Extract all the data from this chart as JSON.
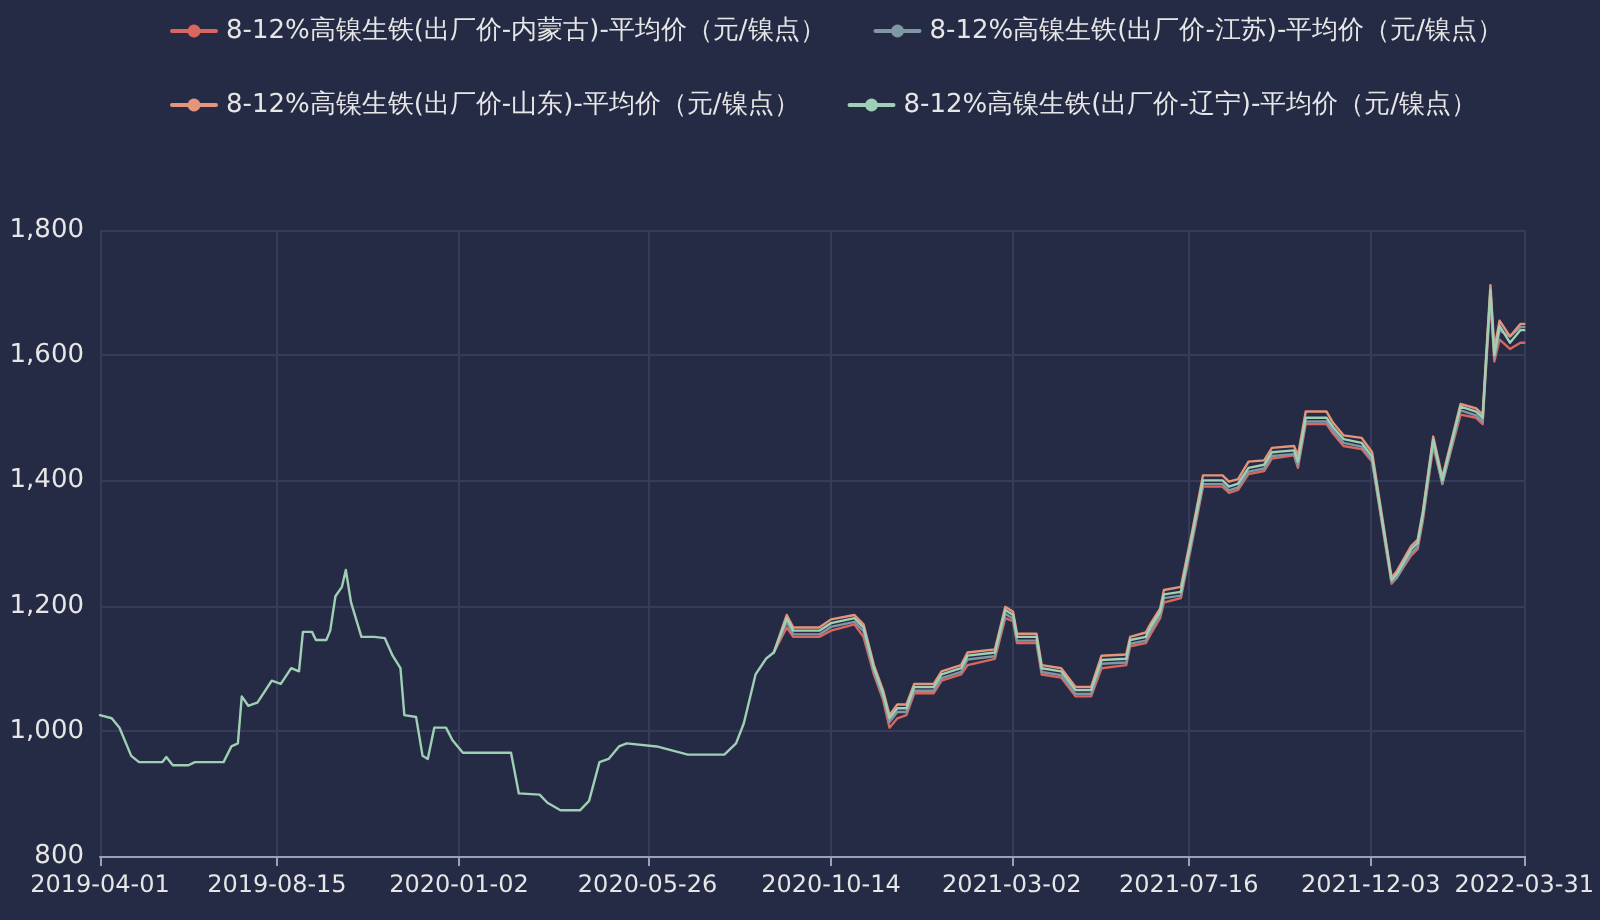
{
  "chart_data": {
    "type": "line",
    "x": [
      "2019-04-01",
      "2019-04-10",
      "2019-04-16",
      "2019-04-25",
      "2019-05-01",
      "2019-05-19",
      "2019-05-22",
      "2019-05-27",
      "2019-06-08",
      "2019-06-13",
      "2019-07-05",
      "2019-07-11",
      "2019-07-16",
      "2019-07-19",
      "2019-07-24",
      "2019-07-31",
      "2019-08-11",
      "2019-08-18",
      "2019-08-26",
      "2019-09-01",
      "2019-09-04",
      "2019-09-11",
      "2019-09-14",
      "2019-09-22",
      "2019-09-25",
      "2019-09-29",
      "2019-10-04",
      "2019-10-07",
      "2019-10-11",
      "2019-10-19",
      "2019-10-29",
      "2019-11-06",
      "2019-11-12",
      "2019-11-18",
      "2019-11-21",
      "2019-11-30",
      "2019-12-05",
      "2019-12-09",
      "2019-12-14",
      "2019-12-23",
      "2019-12-28",
      "2020-01-05",
      "2020-02-11",
      "2020-02-17",
      "2020-03-04",
      "2020-03-10",
      "2020-03-20",
      "2020-04-04",
      "2020-04-11",
      "2020-04-19",
      "2020-04-26",
      "2020-05-04",
      "2020-05-10",
      "2020-06-02",
      "2020-06-26",
      "2020-07-24",
      "2020-08-02",
      "2020-08-08",
      "2020-08-17",
      "2020-08-25",
      "2020-08-31",
      "2020-09-10",
      "2020-09-15",
      "2020-10-05",
      "2020-10-14",
      "2020-11-01",
      "2020-11-08",
      "2020-11-16",
      "2020-11-23",
      "2020-11-28",
      "2020-12-04",
      "2020-12-11",
      "2020-12-17",
      "2021-01-01",
      "2021-01-07",
      "2021-01-22",
      "2021-01-27",
      "2021-02-17",
      "2021-02-25",
      "2021-03-03",
      "2021-03-06",
      "2021-03-21",
      "2021-03-25",
      "2021-04-09",
      "2021-04-20",
      "2021-05-02",
      "2021-05-10",
      "2021-05-29",
      "2021-06-01",
      "2021-06-13",
      "2021-06-17",
      "2021-06-24",
      "2021-06-27",
      "2021-07-10",
      "2021-07-19",
      "2021-07-27",
      "2021-08-11",
      "2021-08-16",
      "2021-08-23",
      "2021-08-31",
      "2021-09-12",
      "2021-09-18",
      "2021-10-05",
      "2021-10-08",
      "2021-10-14",
      "2021-10-30",
      "2021-11-04",
      "2021-11-12",
      "2021-11-26",
      "2021-12-04",
      "2021-12-19",
      "2021-12-23",
      "2022-01-03",
      "2022-01-08",
      "2022-01-12",
      "2022-01-20",
      "2022-01-27",
      "2022-02-10",
      "2022-02-22",
      "2022-02-27",
      "2022-03-01",
      "2022-03-05",
      "2022-03-08",
      "2022-03-12",
      "2022-03-20",
      "2022-03-28",
      "2022-03-31"
    ],
    "series": [
      {
        "name": "8-12%高镍生铁(出厂价-内蒙古)-平均价（元/镍点）",
        "color": "#d9675f",
        "values": [
          null,
          null,
          null,
          null,
          null,
          null,
          null,
          null,
          null,
          null,
          null,
          null,
          null,
          null,
          null,
          null,
          null,
          null,
          null,
          null,
          null,
          null,
          null,
          null,
          null,
          null,
          null,
          null,
          null,
          null,
          null,
          null,
          null,
          null,
          null,
          null,
          null,
          null,
          null,
          null,
          null,
          null,
          null,
          null,
          null,
          null,
          null,
          null,
          null,
          null,
          null,
          null,
          null,
          null,
          null,
          null,
          null,
          null,
          null,
          null,
          1125,
          1165,
          1150,
          1150,
          1160,
          1170,
          1150,
          1090,
          1050,
          1005,
          1020,
          1025,
          1060,
          1060,
          1080,
          1090,
          1105,
          1115,
          1180,
          1175,
          1140,
          1140,
          1090,
          1085,
          1055,
          1055,
          1100,
          1105,
          1135,
          1140,
          1155,
          1180,
          1205,
          1212,
          1305,
          1390,
          1390,
          1380,
          1385,
          1410,
          1415,
          1435,
          1440,
          1420,
          1490,
          1490,
          1475,
          1455,
          1450,
          1430,
          1235,
          1245,
          1280,
          1290,
          1335,
          1455,
          1395,
          1505,
          1500,
          1490,
          1560,
          1690,
          1590,
          1625,
          1610,
          1620,
          1620
        ]
      },
      {
        "name": "8-12%高镍生铁(出厂价-江苏)-平均价（元/镍点）",
        "color": "#7f98a3",
        "values": [
          null,
          null,
          null,
          null,
          null,
          null,
          null,
          null,
          null,
          null,
          null,
          null,
          null,
          null,
          null,
          null,
          null,
          null,
          null,
          null,
          null,
          null,
          null,
          null,
          null,
          null,
          null,
          null,
          null,
          null,
          null,
          null,
          null,
          null,
          null,
          null,
          null,
          null,
          null,
          null,
          null,
          null,
          null,
          null,
          null,
          null,
          null,
          null,
          null,
          null,
          null,
          null,
          null,
          null,
          null,
          null,
          null,
          null,
          null,
          null,
          1125,
          1174,
          1154,
          1154,
          1166,
          1174,
          1159,
          1094,
          1054,
          1014,
          1030,
          1030,
          1064,
          1064,
          1084,
          1094,
          1114,
          1119,
          1187,
          1179,
          1144,
          1144,
          1094,
          1089,
          1059,
          1059,
          1107,
          1109,
          1139,
          1144,
          1161,
          1184,
          1212,
          1216,
          1309,
          1394,
          1394,
          1384,
          1389,
          1414,
          1419,
          1439,
          1442,
          1424,
          1494,
          1494,
          1479,
          1460,
          1454,
          1432,
          1238,
          1244,
          1284,
          1294,
          1340,
          1459,
          1394,
          1512,
          1504,
          1494,
          1564,
          1698,
          1594,
          1640,
          1630,
          1645,
          1645
        ]
      },
      {
        "name": "8-12%高镍生铁(出厂价-山东)-平均价（元/镍点）",
        "color": "#e5957b",
        "values": [
          null,
          null,
          null,
          null,
          null,
          null,
          null,
          null,
          null,
          null,
          null,
          null,
          null,
          null,
          null,
          null,
          null,
          null,
          null,
          null,
          null,
          null,
          null,
          null,
          null,
          null,
          null,
          null,
          null,
          null,
          null,
          null,
          null,
          null,
          null,
          null,
          null,
          null,
          null,
          null,
          null,
          null,
          null,
          null,
          null,
          null,
          null,
          null,
          null,
          null,
          null,
          null,
          null,
          null,
          null,
          null,
          null,
          null,
          null,
          null,
          1125,
          1185,
          1165,
          1165,
          1178,
          1185,
          1170,
          1105,
          1065,
          1025,
          1042,
          1042,
          1075,
          1075,
          1095,
          1105,
          1125,
          1130,
          1198,
          1190,
          1155,
          1155,
          1105,
          1100,
          1070,
          1070,
          1120,
          1122,
          1150,
          1157,
          1172,
          1195,
          1225,
          1230,
          1322,
          1408,
          1408,
          1398,
          1402,
          1430,
          1432,
          1452,
          1455,
          1440,
          1510,
          1510,
          1492,
          1472,
          1468,
          1445,
          1245,
          1255,
          1295,
          1305,
          1350,
          1470,
          1405,
          1522,
          1515,
          1505,
          1575,
          1712,
          1610,
          1655,
          1630,
          1650,
          1650
        ]
      },
      {
        "name": "8-12%高镍生铁(出厂价-辽宁)-平均价（元/镍点）",
        "color": "#9fcfb4",
        "values": [
          1025,
          1020,
          1005,
          960,
          950,
          950,
          958,
          945,
          945,
          950,
          950,
          975,
          980,
          1055,
          1040,
          1045,
          1080,
          1075,
          1100,
          1095,
          1158,
          1158,
          1145,
          1145,
          1160,
          1215,
          1230,
          1257,
          1205,
          1150,
          1150,
          1148,
          1120,
          1100,
          1025,
          1022,
          960,
          955,
          1005,
          1005,
          985,
          965,
          965,
          900,
          898,
          885,
          873,
          873,
          888,
          950,
          955,
          975,
          980,
          975,
          962,
          962,
          980,
          1012,
          1090,
          1115,
          1125,
          1180,
          1160,
          1160,
          1172,
          1180,
          1165,
          1100,
          1060,
          1020,
          1036,
          1036,
          1070,
          1070,
          1090,
          1100,
          1120,
          1125,
          1193,
          1185,
          1150,
          1150,
          1100,
          1095,
          1065,
          1065,
          1113,
          1115,
          1145,
          1150,
          1167,
          1190,
          1218,
          1222,
          1315,
          1400,
          1400,
          1390,
          1395,
          1420,
          1425,
          1445,
          1448,
          1430,
          1500,
          1500,
          1485,
          1466,
          1460,
          1438,
          1241,
          1250,
          1290,
          1300,
          1346,
          1465,
          1400,
          1518,
          1510,
          1500,
          1570,
          1704,
          1600,
          1647,
          1620,
          1640,
          1640
        ]
      }
    ],
    "xlim": [
      "2019-04-01",
      "2022-03-31"
    ],
    "xticks": [
      "2019-04-01",
      "2019-08-15",
      "2020-01-02",
      "2020-05-26",
      "2020-10-14",
      "2021-03-02",
      "2021-07-16",
      "2021-12-03",
      "2022-03-31"
    ],
    "ylim": [
      800,
      1800
    ],
    "yticks": [
      800,
      {
        "value": 1000,
        "label": "1,000"
      },
      {
        "value": 1200,
        "label": "1,200"
      },
      {
        "value": 1400,
        "label": "1,400"
      },
      {
        "value": 1600,
        "label": "1,600"
      },
      {
        "value": 1800,
        "label": "1,800"
      }
    ],
    "grid": true,
    "legend": "top",
    "marker": "none",
    "line_style": "solid"
  }
}
